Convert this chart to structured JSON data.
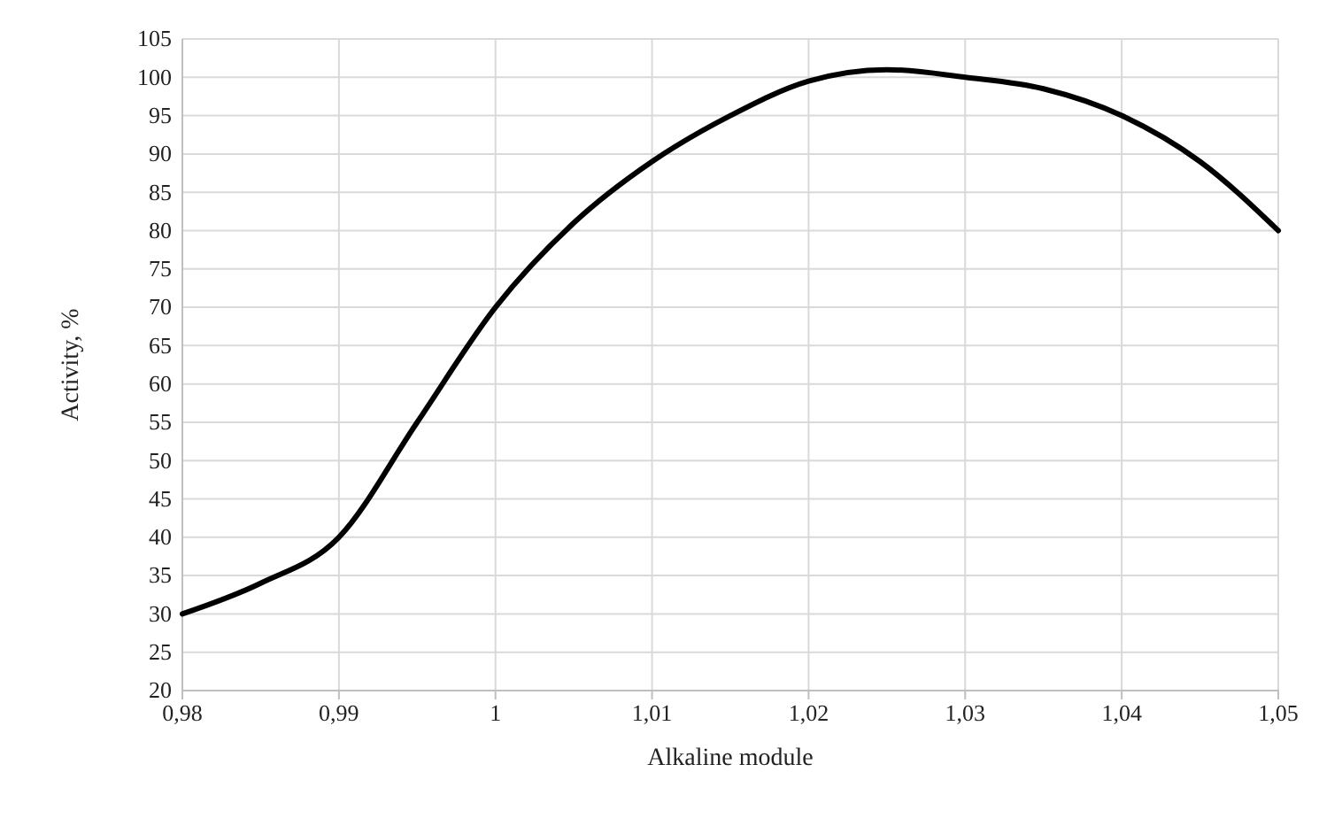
{
  "chart_data": {
    "type": "line",
    "xlabel": "Alkaline module",
    "ylabel": "Activity, %",
    "x": [
      0.98,
      0.985,
      0.99,
      0.995,
      1.0,
      1.005,
      1.01,
      1.015,
      1.02,
      1.025,
      1.03,
      1.035,
      1.04,
      1.045,
      1.05
    ],
    "series": [
      {
        "color": "#000000",
        "values": [
          30,
          34,
          40,
          55,
          70,
          81,
          89,
          95,
          99.5,
          101,
          100,
          98.5,
          95,
          89,
          80
        ]
      }
    ],
    "xlim": [
      0.98,
      1.05
    ],
    "xticks": [
      {
        "value": 0.98,
        "label": "0,98"
      },
      {
        "value": 0.99,
        "label": "0,99"
      },
      {
        "value": 1,
        "label": "1"
      },
      {
        "value": 1.01,
        "label": "1,01"
      },
      {
        "value": 1.02,
        "label": "1,02"
      },
      {
        "value": 1.03,
        "label": "1,03"
      },
      {
        "value": 1.04,
        "label": "1,04"
      },
      {
        "value": 1.05,
        "label": "1,05"
      }
    ],
    "ylim": [
      20,
      105
    ],
    "yticks": [
      20,
      25,
      30,
      35,
      40,
      45,
      50,
      55,
      60,
      65,
      70,
      75,
      80,
      85,
      90,
      95,
      100,
      105
    ],
    "grid": true,
    "marker": "none",
    "line_style": "solid"
  }
}
